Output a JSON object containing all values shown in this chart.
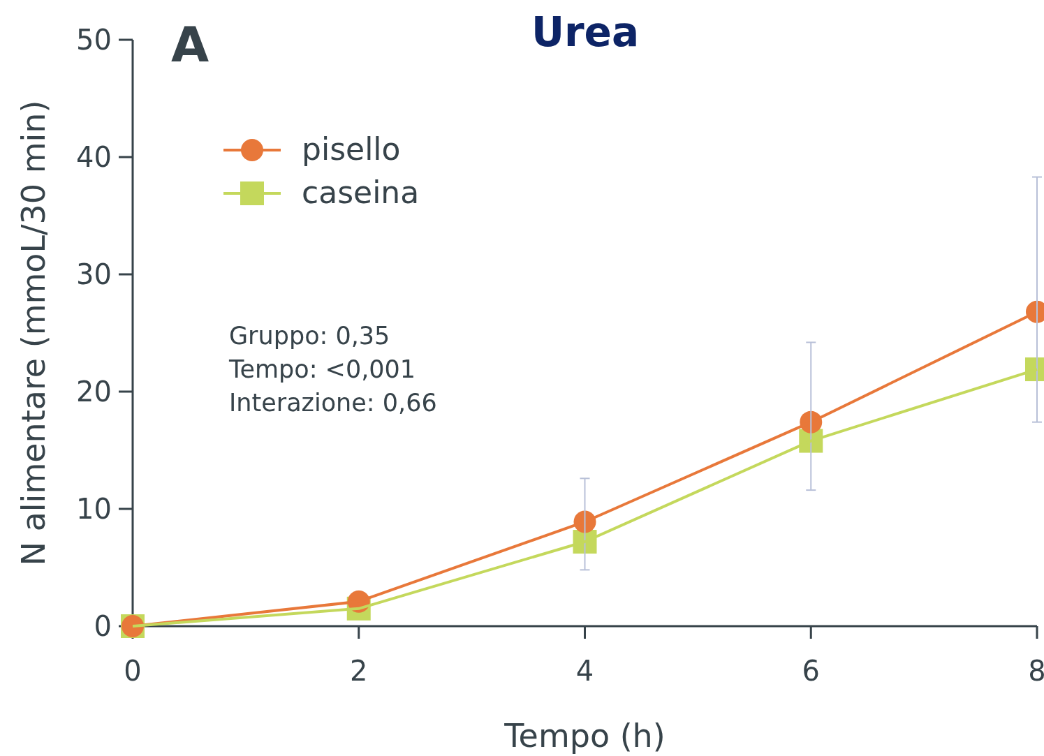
{
  "chart_data": {
    "type": "line",
    "title": "Urea",
    "xlabel": "Tempo (h)",
    "ylabel": "N alimentare (mmoL/30 min)",
    "x": [
      0,
      2,
      4,
      6,
      8
    ],
    "xlim": [
      0,
      8
    ],
    "xticks": [
      0,
      2,
      4,
      6,
      8
    ],
    "ylim": [
      0,
      50
    ],
    "yticks": [
      0,
      10,
      20,
      30,
      40,
      50
    ],
    "grid": false,
    "legend": "top left",
    "line_style": "solid",
    "series": [
      {
        "name": "pisello",
        "color": "#e8783a",
        "marker": "circle",
        "values": [
          0,
          2.1,
          8.9,
          17.4,
          26.8
        ],
        "errors": [
          null,
          null,
          [
            4.8,
            12.6
          ],
          [
            11.6,
            24.2
          ],
          [
            17.4,
            38.3
          ]
        ]
      },
      {
        "name": "caseina",
        "color": "#c4d85c",
        "marker": "square",
        "values": [
          0,
          1.5,
          7.2,
          15.8,
          21.9
        ]
      }
    ],
    "annotations": [
      "A",
      "Gruppo: 0,35",
      "Tempo: <0,001",
      "Interazione: 0,66"
    ]
  }
}
